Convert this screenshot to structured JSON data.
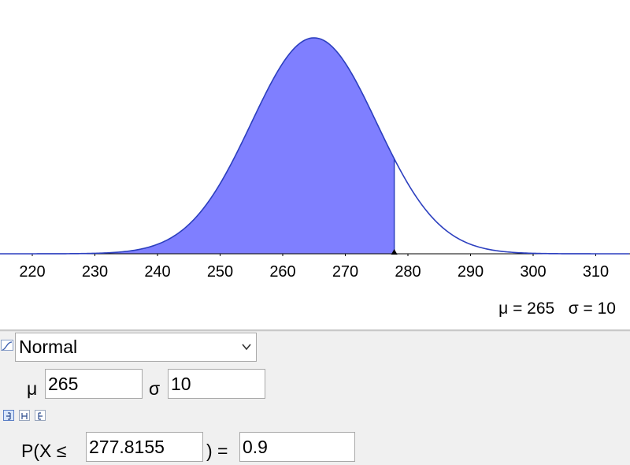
{
  "graph": {
    "x_ticks": [
      "220",
      "230",
      "240",
      "250",
      "260",
      "270",
      "280",
      "290",
      "300",
      "310"
    ],
    "mu_label": "μ = 265",
    "sigma_label": "σ = 10",
    "fill_color": "#7f7fff",
    "curve_color": "#2c3fbf",
    "mean": 265,
    "sd": 10,
    "shade_upper": 277.8155
  },
  "distribution": {
    "selected": "Normal"
  },
  "params": {
    "mu_symbol": "μ",
    "mu_value": "265",
    "sigma_symbol": "σ",
    "sigma_value": "10"
  },
  "mode_buttons": [
    "left-sided-icon",
    "interval-icon",
    "right-sided-icon"
  ],
  "probability": {
    "prefix": "P(X ≤",
    "x_value": "277.8155",
    "suffix": ") =",
    "result": "0.9"
  }
}
